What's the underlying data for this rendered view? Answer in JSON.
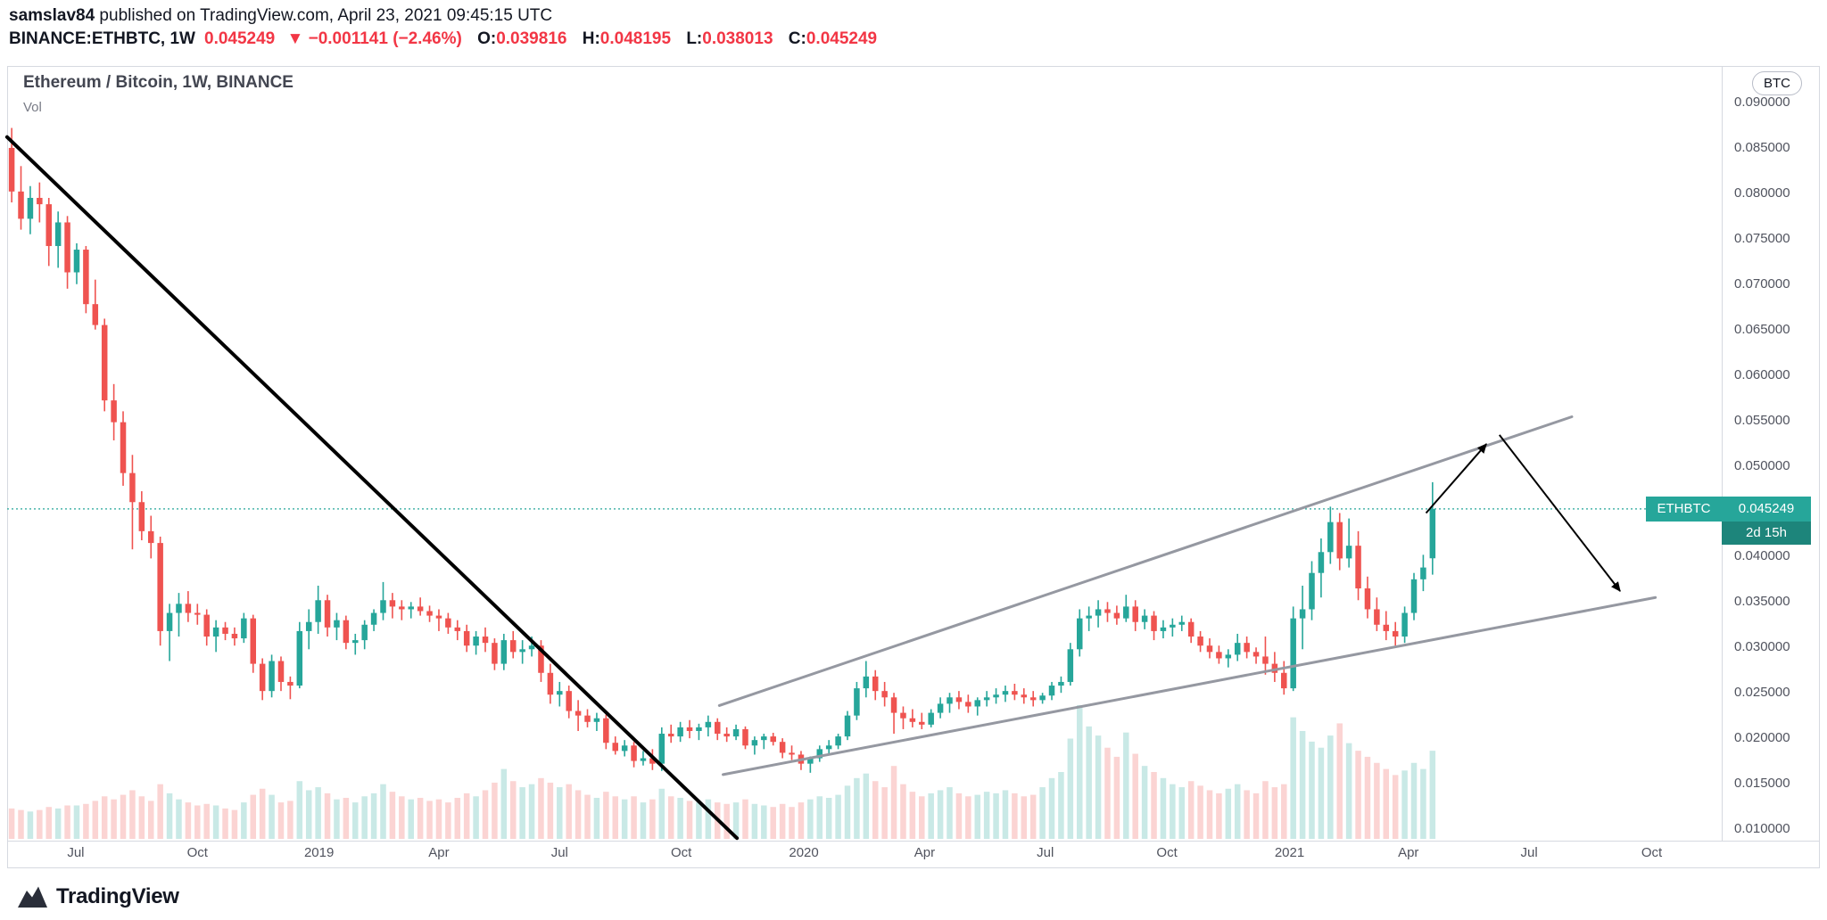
{
  "header": {
    "byline_user": "samslav84",
    "byline_rest": " published on TradingView.com, April 23, 2021 09:45:15 UTC",
    "symbol_title": "BINANCE:ETHBTC, 1W",
    "last_price": "0.045249",
    "change": "▼ −0.001141 (−2.46%)",
    "o_label": "O:",
    "o": "0.039816",
    "h_label": "H:",
    "h": "0.048195",
    "l_label": "L:",
    "l": "0.038013",
    "c_label": "C:",
    "c": "0.045249"
  },
  "chart": {
    "legend_title": "Ethereum / Bitcoin, 1W, BINANCE",
    "vol_label": "Vol",
    "unit_button": "BTC",
    "price_label_box": {
      "symbol": "ETHBTC",
      "price": "0.045249",
      "countdown": "2d 15h"
    },
    "colors": {
      "up": "#26a69a",
      "down": "#ef5350",
      "accent_teal": "#26a69a",
      "countdown_bg": "#1d857b",
      "header_red": "#f23645",
      "axis_text": "#50535e",
      "trendline_black": "#000000",
      "trendline_gray": "#9598a1"
    }
  },
  "footer": {
    "brand": "TradingView"
  },
  "chart_data": {
    "type": "candlestick",
    "symbol": "BINANCE:ETHBTC",
    "timeframe": "1W",
    "title": "Ethereum / Bitcoin, 1W, BINANCE",
    "start_week_date": "2018-05-14",
    "note": "weekly candles left to right as [open, high, low, close, volume]; prices in BTC",
    "current_price": 0.045249,
    "y_axis": {
      "min": 0.01,
      "max": 0.09,
      "step": 0.005,
      "unit": "BTC",
      "tick_labels": [
        "0.090000",
        "0.085000",
        "0.080000",
        "0.075000",
        "0.070000",
        "0.065000",
        "0.060000",
        "0.055000",
        "0.050000",
        "0.045000",
        "0.040000",
        "0.035000",
        "0.030000",
        "0.025000",
        "0.020000",
        "0.015000",
        "0.010000"
      ]
    },
    "x_axis": {
      "labels": [
        {
          "label": "Jul",
          "week": 6.9
        },
        {
          "label": "Oct",
          "week": 20.0
        },
        {
          "label": "2019",
          "week": 33.1
        },
        {
          "label": "Apr",
          "week": 46.0
        },
        {
          "label": "Jul",
          "week": 59.0
        },
        {
          "label": "Oct",
          "week": 72.1
        },
        {
          "label": "2020",
          "week": 85.3
        },
        {
          "label": "Apr",
          "week": 98.3
        },
        {
          "label": "Jul",
          "week": 111.3
        },
        {
          "label": "Oct",
          "week": 124.4
        },
        {
          "label": "2021",
          "week": 137.6
        },
        {
          "label": "Apr",
          "week": 150.4
        },
        {
          "label": "Jul",
          "week": 163.4
        },
        {
          "label": "Oct",
          "week": 176.6
        }
      ]
    },
    "candles": [
      [
        0.085,
        0.0872,
        0.079,
        0.0802,
        2.0
      ],
      [
        0.0802,
        0.083,
        0.076,
        0.0772,
        1.9
      ],
      [
        0.0772,
        0.0808,
        0.0755,
        0.0795,
        1.8
      ],
      [
        0.0795,
        0.0812,
        0.0768,
        0.0788,
        1.9
      ],
      [
        0.0788,
        0.0795,
        0.072,
        0.0742,
        2.1
      ],
      [
        0.0742,
        0.078,
        0.0718,
        0.0768,
        2.0
      ],
      [
        0.0768,
        0.0775,
        0.0695,
        0.0713,
        2.2
      ],
      [
        0.0713,
        0.0745,
        0.07,
        0.0738,
        2.2
      ],
      [
        0.0738,
        0.0742,
        0.0668,
        0.0678,
        2.3
      ],
      [
        0.0678,
        0.0705,
        0.065,
        0.0655,
        2.5
      ],
      [
        0.0655,
        0.0662,
        0.056,
        0.0572,
        2.8
      ],
      [
        0.0572,
        0.059,
        0.0528,
        0.0548,
        2.6
      ],
      [
        0.0548,
        0.056,
        0.0478,
        0.0492,
        2.9
      ],
      [
        0.0492,
        0.0512,
        0.0408,
        0.046,
        3.2
      ],
      [
        0.046,
        0.0472,
        0.0418,
        0.0428,
        2.8
      ],
      [
        0.0428,
        0.0445,
        0.0398,
        0.0415,
        2.5
      ],
      [
        0.0415,
        0.0422,
        0.0302,
        0.0318,
        3.6
      ],
      [
        0.0318,
        0.0348,
        0.0285,
        0.0338,
        3.0
      ],
      [
        0.0338,
        0.036,
        0.0312,
        0.0348,
        2.6
      ],
      [
        0.0348,
        0.0362,
        0.0328,
        0.0338,
        2.4
      ],
      [
        0.0338,
        0.0348,
        0.0325,
        0.0336,
        2.2
      ],
      [
        0.0336,
        0.0342,
        0.0302,
        0.0312,
        2.3
      ],
      [
        0.0312,
        0.033,
        0.0295,
        0.0322,
        2.2
      ],
      [
        0.0322,
        0.0328,
        0.0308,
        0.0315,
        2.0
      ],
      [
        0.0315,
        0.0322,
        0.0302,
        0.031,
        1.9
      ],
      [
        0.031,
        0.0338,
        0.0305,
        0.0332,
        2.4
      ],
      [
        0.0332,
        0.0336,
        0.0272,
        0.0282,
        2.9
      ],
      [
        0.0282,
        0.0288,
        0.0242,
        0.0252,
        3.3
      ],
      [
        0.0252,
        0.0292,
        0.0245,
        0.0285,
        2.9
      ],
      [
        0.0285,
        0.029,
        0.0252,
        0.0262,
        2.4
      ],
      [
        0.0262,
        0.0268,
        0.0243,
        0.0258,
        2.5
      ],
      [
        0.0258,
        0.0328,
        0.0255,
        0.0318,
        3.8
      ],
      [
        0.0318,
        0.0342,
        0.0298,
        0.0328,
        3.2
      ],
      [
        0.0328,
        0.0368,
        0.0315,
        0.0352,
        3.4
      ],
      [
        0.0352,
        0.0358,
        0.0312,
        0.0322,
        3.0
      ],
      [
        0.0322,
        0.0338,
        0.0308,
        0.033,
        2.6
      ],
      [
        0.033,
        0.0335,
        0.0298,
        0.0305,
        2.7
      ],
      [
        0.0305,
        0.0315,
        0.0292,
        0.0308,
        2.4
      ],
      [
        0.0308,
        0.033,
        0.0298,
        0.0325,
        2.8
      ],
      [
        0.0325,
        0.0342,
        0.0318,
        0.0338,
        3.0
      ],
      [
        0.0338,
        0.0372,
        0.033,
        0.0352,
        3.6
      ],
      [
        0.0352,
        0.036,
        0.0332,
        0.0345,
        3.1
      ],
      [
        0.0345,
        0.0352,
        0.033,
        0.0342,
        2.8
      ],
      [
        0.0342,
        0.035,
        0.0332,
        0.0345,
        2.6
      ],
      [
        0.0345,
        0.0355,
        0.0335,
        0.034,
        2.7
      ],
      [
        0.034,
        0.0346,
        0.0328,
        0.0335,
        2.5
      ],
      [
        0.0335,
        0.0342,
        0.0318,
        0.0332,
        2.6
      ],
      [
        0.0332,
        0.0338,
        0.0315,
        0.0322,
        2.4
      ],
      [
        0.0322,
        0.033,
        0.0308,
        0.0318,
        2.7
      ],
      [
        0.0318,
        0.0325,
        0.0295,
        0.0302,
        3.0
      ],
      [
        0.0302,
        0.0318,
        0.0292,
        0.0312,
        2.8
      ],
      [
        0.0312,
        0.0322,
        0.0295,
        0.0305,
        3.2
      ],
      [
        0.0305,
        0.031,
        0.0275,
        0.0282,
        3.7
      ],
      [
        0.0282,
        0.0315,
        0.0275,
        0.0308,
        4.6
      ],
      [
        0.0308,
        0.0318,
        0.0288,
        0.0295,
        3.8
      ],
      [
        0.0295,
        0.0308,
        0.0282,
        0.0298,
        3.4
      ],
      [
        0.0298,
        0.0312,
        0.029,
        0.0302,
        3.6
      ],
      [
        0.0302,
        0.0308,
        0.0262,
        0.0272,
        4.0
      ],
      [
        0.0272,
        0.0282,
        0.0238,
        0.0248,
        3.7
      ],
      [
        0.0248,
        0.0262,
        0.0235,
        0.0252,
        3.4
      ],
      [
        0.0252,
        0.0258,
        0.0222,
        0.023,
        3.6
      ],
      [
        0.023,
        0.0242,
        0.0208,
        0.0225,
        3.2
      ],
      [
        0.0225,
        0.0232,
        0.0212,
        0.0218,
        2.9
      ],
      [
        0.0218,
        0.0228,
        0.0208,
        0.0222,
        2.7
      ],
      [
        0.0222,
        0.0226,
        0.0188,
        0.0195,
        3.1
      ],
      [
        0.0195,
        0.0202,
        0.0182,
        0.0186,
        2.8
      ],
      [
        0.0186,
        0.0198,
        0.018,
        0.0192,
        2.6
      ],
      [
        0.0192,
        0.0196,
        0.0168,
        0.0175,
        2.8
      ],
      [
        0.0175,
        0.0186,
        0.017,
        0.0178,
        2.4
      ],
      [
        0.0178,
        0.0188,
        0.0165,
        0.0172,
        2.6
      ],
      [
        0.0172,
        0.0212,
        0.0164,
        0.0205,
        3.3
      ],
      [
        0.0205,
        0.0215,
        0.0195,
        0.0202,
        2.8
      ],
      [
        0.0202,
        0.0218,
        0.0196,
        0.0212,
        2.7
      ],
      [
        0.0212,
        0.022,
        0.02,
        0.0208,
        2.5
      ],
      [
        0.0208,
        0.0216,
        0.0198,
        0.0212,
        2.4
      ],
      [
        0.0212,
        0.0225,
        0.0202,
        0.0218,
        2.6
      ],
      [
        0.0218,
        0.0222,
        0.0198,
        0.0205,
        2.4
      ],
      [
        0.0205,
        0.0212,
        0.0196,
        0.0202,
        2.3
      ],
      [
        0.0202,
        0.0215,
        0.0198,
        0.021,
        2.4
      ],
      [
        0.021,
        0.0213,
        0.0188,
        0.0192,
        2.6
      ],
      [
        0.0192,
        0.0202,
        0.0182,
        0.0198,
        2.3
      ],
      [
        0.0198,
        0.0205,
        0.0188,
        0.0202,
        2.2
      ],
      [
        0.0202,
        0.0206,
        0.0192,
        0.0196,
        2.1
      ],
      [
        0.0196,
        0.02,
        0.0178,
        0.0184,
        2.3
      ],
      [
        0.0184,
        0.0192,
        0.0176,
        0.0182,
        2.1
      ],
      [
        0.0182,
        0.0186,
        0.0165,
        0.0172,
        2.4
      ],
      [
        0.0172,
        0.018,
        0.0162,
        0.0178,
        2.6
      ],
      [
        0.0178,
        0.0192,
        0.0174,
        0.0188,
        2.8
      ],
      [
        0.0188,
        0.0198,
        0.0182,
        0.0192,
        2.7
      ],
      [
        0.0192,
        0.0205,
        0.0188,
        0.0202,
        2.9
      ],
      [
        0.0202,
        0.023,
        0.0198,
        0.0225,
        3.5
      ],
      [
        0.0225,
        0.0262,
        0.022,
        0.0255,
        4.0
      ],
      [
        0.0255,
        0.0285,
        0.0245,
        0.0268,
        4.3
      ],
      [
        0.0268,
        0.0275,
        0.0242,
        0.0252,
        3.8
      ],
      [
        0.0252,
        0.0262,
        0.0235,
        0.0245,
        3.4
      ],
      [
        0.0245,
        0.025,
        0.0205,
        0.0228,
        4.8
      ],
      [
        0.0228,
        0.0235,
        0.021,
        0.0222,
        3.6
      ],
      [
        0.0222,
        0.0232,
        0.0212,
        0.0218,
        3.1
      ],
      [
        0.0218,
        0.0228,
        0.021,
        0.0215,
        2.8
      ],
      [
        0.0215,
        0.0232,
        0.0212,
        0.0228,
        3.0
      ],
      [
        0.0228,
        0.0245,
        0.0222,
        0.0238,
        3.2
      ],
      [
        0.0238,
        0.025,
        0.0228,
        0.0245,
        3.4
      ],
      [
        0.0245,
        0.0252,
        0.0232,
        0.024,
        3.0
      ],
      [
        0.024,
        0.0248,
        0.0228,
        0.0235,
        2.8
      ],
      [
        0.0235,
        0.0245,
        0.0225,
        0.0242,
        2.9
      ],
      [
        0.0242,
        0.0252,
        0.0235,
        0.0245,
        3.1
      ],
      [
        0.0245,
        0.0255,
        0.0238,
        0.0248,
        3.0
      ],
      [
        0.0248,
        0.0258,
        0.024,
        0.0252,
        3.2
      ],
      [
        0.0252,
        0.026,
        0.0242,
        0.0248,
        3.0
      ],
      [
        0.0248,
        0.0255,
        0.0238,
        0.0245,
        2.8
      ],
      [
        0.0245,
        0.0252,
        0.0235,
        0.0242,
        2.9
      ],
      [
        0.0242,
        0.025,
        0.0238,
        0.0247,
        3.4
      ],
      [
        0.0247,
        0.0262,
        0.0242,
        0.0258,
        4.0
      ],
      [
        0.0258,
        0.0268,
        0.025,
        0.0262,
        4.4
      ],
      [
        0.0262,
        0.0305,
        0.0258,
        0.0298,
        6.6
      ],
      [
        0.0298,
        0.0342,
        0.029,
        0.0332,
        8.8
      ],
      [
        0.0332,
        0.0345,
        0.0318,
        0.0335,
        7.4
      ],
      [
        0.0335,
        0.0352,
        0.0322,
        0.0342,
        6.8
      ],
      [
        0.0342,
        0.035,
        0.0328,
        0.0338,
        6.0
      ],
      [
        0.0338,
        0.0346,
        0.0325,
        0.0332,
        5.4
      ],
      [
        0.0332,
        0.0358,
        0.0328,
        0.0345,
        7.0
      ],
      [
        0.0345,
        0.0352,
        0.0318,
        0.0328,
        5.6
      ],
      [
        0.0328,
        0.0342,
        0.032,
        0.0335,
        4.8
      ],
      [
        0.0335,
        0.034,
        0.0308,
        0.0318,
        4.4
      ],
      [
        0.0318,
        0.033,
        0.031,
        0.0322,
        4.0
      ],
      [
        0.0322,
        0.0332,
        0.0312,
        0.0325,
        3.6
      ],
      [
        0.0325,
        0.0335,
        0.0318,
        0.0328,
        3.4
      ],
      [
        0.0328,
        0.0332,
        0.0305,
        0.0312,
        3.8
      ],
      [
        0.0312,
        0.0318,
        0.0295,
        0.0302,
        3.5
      ],
      [
        0.0302,
        0.031,
        0.0288,
        0.0295,
        3.2
      ],
      [
        0.0295,
        0.0302,
        0.0282,
        0.0288,
        3.0
      ],
      [
        0.0288,
        0.0298,
        0.0278,
        0.0292,
        3.3
      ],
      [
        0.0292,
        0.0315,
        0.0285,
        0.0305,
        3.6
      ],
      [
        0.0305,
        0.0312,
        0.0288,
        0.0295,
        3.2
      ],
      [
        0.0295,
        0.03,
        0.0282,
        0.029,
        3.0
      ],
      [
        0.029,
        0.0312,
        0.027,
        0.0282,
        3.8
      ],
      [
        0.0282,
        0.0295,
        0.0262,
        0.0272,
        3.4
      ],
      [
        0.0272,
        0.0285,
        0.0248,
        0.0255,
        3.6
      ],
      [
        0.0255,
        0.0345,
        0.0252,
        0.0332,
        8.0
      ],
      [
        0.0332,
        0.0368,
        0.0298,
        0.0342,
        7.1
      ],
      [
        0.0342,
        0.0395,
        0.033,
        0.0382,
        6.4
      ],
      [
        0.0382,
        0.042,
        0.0355,
        0.0405,
        6.0
      ],
      [
        0.0405,
        0.0455,
        0.0392,
        0.0438,
        6.8
      ],
      [
        0.0438,
        0.0448,
        0.0385,
        0.0398,
        7.6
      ],
      [
        0.0398,
        0.0442,
        0.0388,
        0.0412,
        6.3
      ],
      [
        0.0412,
        0.0428,
        0.0352,
        0.0365,
        5.8
      ],
      [
        0.0365,
        0.0378,
        0.0332,
        0.0342,
        5.4
      ],
      [
        0.0342,
        0.0355,
        0.0318,
        0.0325,
        5.0
      ],
      [
        0.0325,
        0.034,
        0.0308,
        0.0318,
        4.6
      ],
      [
        0.0318,
        0.0328,
        0.0302,
        0.0312,
        4.2
      ],
      [
        0.0312,
        0.0345,
        0.0305,
        0.0338,
        4.5
      ],
      [
        0.0338,
        0.0382,
        0.033,
        0.0375,
        5.0
      ],
      [
        0.0375,
        0.0402,
        0.0362,
        0.0388,
        4.6
      ],
      [
        0.039816,
        0.048195,
        0.038013,
        0.045249,
        5.8
      ]
    ],
    "trendlines": [
      {
        "name": "downtrend",
        "color": "#000000",
        "width": 4,
        "w1": -0.5,
        "p1": 0.0862,
        "w2": 78.1,
        "p2": 0.009
      },
      {
        "name": "wedge-upper",
        "color": "#9598a1",
        "width": 3,
        "w1": 76.2,
        "p1": 0.0236,
        "w2": 168.0,
        "p2": 0.0554
      },
      {
        "name": "wedge-lower",
        "color": "#9598a1",
        "width": 3,
        "w1": 76.6,
        "p1": 0.016,
        "w2": 177.0,
        "p2": 0.0355
      }
    ],
    "arrows": [
      {
        "name": "projection-up",
        "w1": 152.3,
        "p1": 0.0448,
        "w2": 158.8,
        "p2": 0.0524
      },
      {
        "name": "projection-down",
        "w1": 160.2,
        "p1": 0.0534,
        "w2": 173.2,
        "p2": 0.0362
      }
    ]
  }
}
